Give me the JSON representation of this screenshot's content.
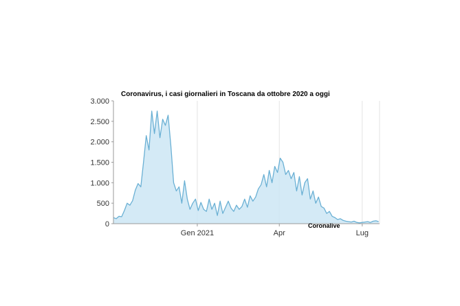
{
  "chart_data": {
    "type": "area",
    "title": "Coronavirus, i casi giornalieri in Toscana da ottobre 2020 a oggi",
    "source": "Coronalive",
    "xlabel": "",
    "ylabel": "",
    "x_start": "2020-10-01",
    "x_end": "2021-07-20",
    "ylim": [
      0,
      3000
    ],
    "y_ticks": [
      {
        "value": 0,
        "label": "0"
      },
      {
        "value": 500,
        "label": "500"
      },
      {
        "value": 1000,
        "label": "1.000"
      },
      {
        "value": 1500,
        "label": "1.500"
      },
      {
        "value": 2000,
        "label": "2.000"
      },
      {
        "value": 2500,
        "label": "2.500"
      },
      {
        "value": 3000,
        "label": "3.000"
      }
    ],
    "x_ticks": [
      {
        "date": "2021-01-01",
        "label": "Gen 2021"
      },
      {
        "date": "2021-04-01",
        "label": "Apr"
      },
      {
        "date": "2021-07-01",
        "label": "Lug"
      }
    ],
    "grid": {
      "x": true,
      "y": false
    },
    "colors": {
      "line": "#6ab0d4",
      "fill": "#cce6f4",
      "axis": "#999999",
      "grid": "#e3e3e3"
    },
    "series": [
      {
        "x": [
          "2020-10-01",
          "2020-10-04",
          "2020-10-07",
          "2020-10-10",
          "2020-10-13",
          "2020-10-16",
          "2020-10-19",
          "2020-10-22",
          "2020-10-25",
          "2020-10-28",
          "2020-10-31",
          "2020-11-03",
          "2020-11-06",
          "2020-11-09",
          "2020-11-12",
          "2020-11-15",
          "2020-11-18",
          "2020-11-21",
          "2020-11-24",
          "2020-11-27",
          "2020-11-30",
          "2020-12-03",
          "2020-12-06",
          "2020-12-09",
          "2020-12-12",
          "2020-12-15",
          "2020-12-18",
          "2020-12-21",
          "2020-12-24",
          "2020-12-27",
          "2020-12-30",
          "2021-01-02",
          "2021-01-05",
          "2021-01-08",
          "2021-01-11",
          "2021-01-14",
          "2021-01-17",
          "2021-01-20",
          "2021-01-23",
          "2021-01-26",
          "2021-01-29",
          "2021-02-01",
          "2021-02-04",
          "2021-02-07",
          "2021-02-10",
          "2021-02-13",
          "2021-02-16",
          "2021-02-19",
          "2021-02-22",
          "2021-02-25",
          "2021-02-28",
          "2021-03-03",
          "2021-03-06",
          "2021-03-09",
          "2021-03-12",
          "2021-03-15",
          "2021-03-18",
          "2021-03-21",
          "2021-03-24",
          "2021-03-27",
          "2021-03-30",
          "2021-04-02",
          "2021-04-05",
          "2021-04-08",
          "2021-04-11",
          "2021-04-14",
          "2021-04-17",
          "2021-04-20",
          "2021-04-23",
          "2021-04-26",
          "2021-04-29",
          "2021-05-02",
          "2021-05-05",
          "2021-05-08",
          "2021-05-11",
          "2021-05-14",
          "2021-05-17",
          "2021-05-20",
          "2021-05-23",
          "2021-05-26",
          "2021-05-29",
          "2021-06-01",
          "2021-06-04",
          "2021-06-07",
          "2021-06-10",
          "2021-06-13",
          "2021-06-16",
          "2021-06-19",
          "2021-06-22",
          "2021-06-25",
          "2021-06-28",
          "2021-07-01",
          "2021-07-04",
          "2021-07-07",
          "2021-07-10",
          "2021-07-13",
          "2021-07-16",
          "2021-07-19"
        ],
        "values": [
          150,
          120,
          180,
          170,
          320,
          500,
          450,
          560,
          820,
          980,
          900,
          1500,
          2150,
          1800,
          2750,
          2200,
          2750,
          2100,
          2550,
          2400,
          2650,
          1900,
          1000,
          800,
          900,
          500,
          1050,
          600,
          350,
          500,
          600,
          320,
          520,
          350,
          300,
          600,
          350,
          500,
          200,
          550,
          250,
          400,
          550,
          380,
          300,
          450,
          350,
          420,
          600,
          400,
          680,
          550,
          650,
          850,
          950,
          1200,
          900,
          1300,
          1000,
          1400,
          1250,
          1600,
          1500,
          1200,
          1300,
          1100,
          1250,
          800,
          1150,
          700,
          1000,
          1100,
          600,
          800,
          500,
          650,
          420,
          380,
          250,
          300,
          180,
          150,
          100,
          120,
          80,
          60,
          50,
          40,
          60,
          30,
          20,
          30,
          40,
          50,
          30,
          60,
          70,
          50
        ]
      }
    ]
  }
}
